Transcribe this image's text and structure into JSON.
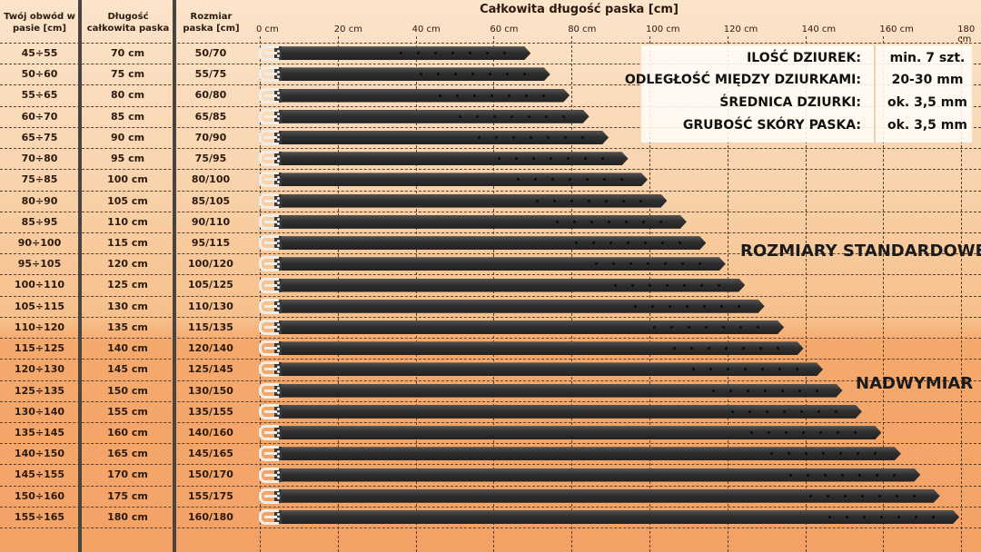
{
  "headers": {
    "waist": "Twój obwód w pasie [cm]",
    "length": "Długość całkowita paska",
    "size": "Rozmiar paska [cm]",
    "chart_title": "Całkowita długość paska [cm]"
  },
  "ticks": [
    "0 cm",
    "20 cm",
    "40 cm",
    "60 cm",
    "80 cm",
    "100 cm",
    "120 cm",
    "140 cm",
    "160 cm",
    "180 cm"
  ],
  "rows": [
    {
      "waist": "45÷55",
      "length": "70 cm",
      "size": "50/70"
    },
    {
      "waist": "50÷60",
      "length": "75 cm",
      "size": "55/75"
    },
    {
      "waist": "55÷65",
      "length": "80 cm",
      "size": "60/80"
    },
    {
      "waist": "60÷70",
      "length": "85 cm",
      "size": "65/85"
    },
    {
      "waist": "65÷75",
      "length": "90 cm",
      "size": "70/90"
    },
    {
      "waist": "70÷80",
      "length": "95 cm",
      "size": "75/95"
    },
    {
      "waist": "75÷85",
      "length": "100 cm",
      "size": "80/100"
    },
    {
      "waist": "80÷90",
      "length": "105 cm",
      "size": "85/105"
    },
    {
      "waist": "85÷95",
      "length": "110 cm",
      "size": "90/110"
    },
    {
      "waist": "90÷100",
      "length": "115 cm",
      "size": "95/115"
    },
    {
      "waist": "95÷105",
      "length": "120 cm",
      "size": "100/120"
    },
    {
      "waist": "100÷110",
      "length": "125 cm",
      "size": "105/125"
    },
    {
      "waist": "105÷115",
      "length": "130 cm",
      "size": "110/130"
    },
    {
      "waist": "110÷120",
      "length": "135 cm",
      "size": "115/135"
    },
    {
      "waist": "115÷125",
      "length": "140 cm",
      "size": "120/140"
    },
    {
      "waist": "120÷130",
      "length": "145 cm",
      "size": "125/145"
    },
    {
      "waist": "125÷135",
      "length": "150 cm",
      "size": "130/150"
    },
    {
      "waist": "130÷140",
      "length": "155 cm",
      "size": "135/155"
    },
    {
      "waist": "135÷145",
      "length": "160 cm",
      "size": "140/160"
    },
    {
      "waist": "140÷150",
      "length": "165 cm",
      "size": "145/165"
    },
    {
      "waist": "145÷155",
      "length": "170 cm",
      "size": "150/170"
    },
    {
      "waist": "150÷160",
      "length": "175 cm",
      "size": "155/175"
    },
    {
      "waist": "155÷165",
      "length": "180 cm",
      "size": "160/180"
    }
  ],
  "info": [
    {
      "label": "ILOŚĆ DZIUREK:",
      "value": "min. 7 szt."
    },
    {
      "label": "ODLEGŁOŚĆ MIĘDZY DZIURKAMI:",
      "value": "20-30 mm"
    },
    {
      "label": "ŚREDNICA DZIURKI:",
      "value": "ok. 3,5 mm"
    },
    {
      "label": "GRUBOŚĆ SKÓRY PASKA:",
      "value": "ok. 3,5 mm"
    }
  ],
  "sections": {
    "standard": "ROZMIARY STANDARDOWE",
    "oversize": "NADWYMIAR"
  },
  "colors": {
    "belt": "#2f2f2f",
    "bg_top": "#fbe4ca",
    "bg_bottom": "#f3a266",
    "divider": "#4a4440"
  },
  "chart_data": {
    "type": "bar",
    "title": "Całkowita długość paska [cm]",
    "xlabel": "",
    "ylabel": "",
    "xlim": [
      0,
      180
    ],
    "categories": [
      "50/70",
      "55/75",
      "60/80",
      "65/85",
      "70/90",
      "75/95",
      "80/100",
      "85/105",
      "90/110",
      "95/115",
      "100/120",
      "105/125",
      "110/130",
      "115/135",
      "120/140",
      "125/145",
      "130/150",
      "135/155",
      "140/160",
      "145/165",
      "150/170",
      "155/175",
      "160/180"
    ],
    "values": [
      70,
      75,
      80,
      85,
      90,
      95,
      100,
      105,
      110,
      115,
      120,
      125,
      130,
      135,
      140,
      145,
      150,
      155,
      160,
      165,
      170,
      175,
      180
    ],
    "holes_per_belt": 7
  }
}
